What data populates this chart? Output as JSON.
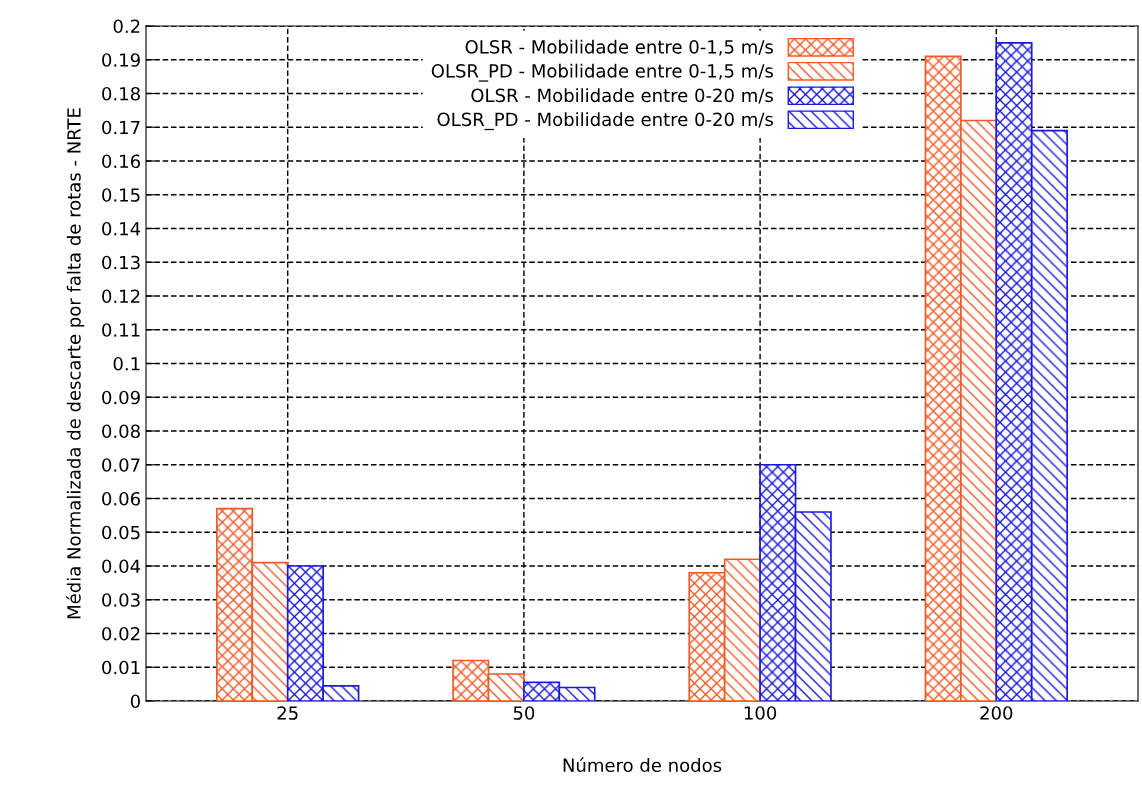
{
  "chart_data": {
    "type": "bar",
    "xlabel": "Número de nodos",
    "ylabel": "Média Normalizada de descarte por falta de rotas - NRTE",
    "categories": [
      "25",
      "50",
      "100",
      "200"
    ],
    "series": [
      {
        "name": "OLSR - Mobilidade entre 0-1,5 m/s",
        "color": "#f05a28",
        "values": [
          0.057,
          0.012,
          0.038,
          0.191
        ]
      },
      {
        "name": "OLSR_PD - Mobilidade entre 0-1,5 m/s",
        "color": "#f05a28",
        "values": [
          0.041,
          0.008,
          0.042,
          0.172
        ]
      },
      {
        "name": "OLSR - Mobilidade entre 0-20 m/s",
        "color": "#1a1adc",
        "values": [
          0.04,
          0.0055,
          0.07,
          0.195
        ]
      },
      {
        "name": "OLSR_PD - Mobilidade entre 0-20 m/s",
        "color": "#1a1adc",
        "values": [
          0.0045,
          0.004,
          0.056,
          0.169
        ]
      }
    ],
    "ylim": [
      0,
      0.2
    ],
    "yticks": [
      0,
      0.01,
      0.02,
      0.03,
      0.04,
      0.05,
      0.06,
      0.07,
      0.08,
      0.09,
      0.1,
      0.11,
      0.12,
      0.13,
      0.14,
      0.15,
      0.16,
      0.17,
      0.18,
      0.19,
      0.2
    ],
    "grid": true,
    "legend": "top center"
  }
}
